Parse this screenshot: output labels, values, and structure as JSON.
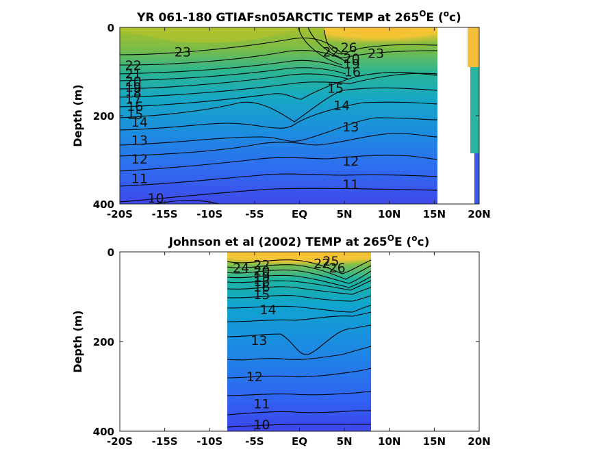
{
  "chart_data": [
    {
      "type": "contour",
      "title": "YR 061-180 GTIAFsn05ARCTIC TEMP at 265",
      "title_sup": "O",
      "title_end": "E (",
      "title_sup2": "o",
      "title_tail": "c)",
      "ylabel": "Depth (m)",
      "xlim": [
        -20,
        20
      ],
      "ylim": [
        400,
        0
      ],
      "x_ticks": [
        -20,
        -15,
        -10,
        -5,
        0,
        5,
        10,
        15,
        20
      ],
      "x_tick_labels": [
        "-20S",
        "-15S",
        "-10S",
        "-5S",
        "EQ",
        "5N",
        "10N",
        "15N",
        "20N"
      ],
      "y_ticks": [
        0,
        200,
        400
      ],
      "y_tick_labels": [
        "0",
        "200",
        "400"
      ],
      "data_extent_x": [
        -20,
        15.5
      ],
      "contour_labels": [
        {
          "text": "23",
          "x": -13,
          "depth": 55
        },
        {
          "text": "22",
          "x": -18.5,
          "depth": 85
        },
        {
          "text": "21",
          "x": -18.5,
          "depth": 105
        },
        {
          "text": "20",
          "x": -18.5,
          "depth": 122
        },
        {
          "text": "19",
          "x": -18.5,
          "depth": 135
        },
        {
          "text": "18",
          "x": -18.5,
          "depth": 148
        },
        {
          "text": "17",
          "x": -18.5,
          "depth": 162
        },
        {
          "text": "16",
          "x": -18.3,
          "depth": 178
        },
        {
          "text": "15",
          "x": -18.3,
          "depth": 196
        },
        {
          "text": "14",
          "x": -17.8,
          "depth": 214
        },
        {
          "text": "13",
          "x": -17.8,
          "depth": 255
        },
        {
          "text": "12",
          "x": -17.8,
          "depth": 298
        },
        {
          "text": "11",
          "x": -17.8,
          "depth": 342
        },
        {
          "text": "10",
          "x": -16,
          "depth": 386
        },
        {
          "text": "15",
          "x": 4,
          "depth": 137
        },
        {
          "text": "14",
          "x": 4.7,
          "depth": 176
        },
        {
          "text": "16",
          "x": 5.9,
          "depth": 100
        },
        {
          "text": "13",
          "x": 5.7,
          "depth": 225
        },
        {
          "text": "12",
          "x": 5.7,
          "depth": 302
        },
        {
          "text": "11",
          "x": 5.7,
          "depth": 355
        },
        {
          "text": "22",
          "x": 3.5,
          "depth": 55
        },
        {
          "text": "26",
          "x": 5.5,
          "depth": 45
        },
        {
          "text": "23",
          "x": 8.5,
          "depth": 58
        },
        {
          "text": "20",
          "x": 5.8,
          "depth": 70
        },
        {
          "text": "19",
          "x": 5.8,
          "depth": 82
        }
      ]
    },
    {
      "type": "contour",
      "title": "Johnson et al (2002) TEMP at 265",
      "title_sup": "O",
      "title_end": "E (",
      "title_sup2": "o",
      "title_tail": "c)",
      "ylabel": "Depth (m)",
      "xlim": [
        -20,
        20
      ],
      "ylim": [
        400,
        0
      ],
      "x_ticks": [
        -20,
        -15,
        -10,
        -5,
        0,
        5,
        10,
        15,
        20
      ],
      "x_tick_labels": [
        "-20S",
        "-15S",
        "-10S",
        "-5S",
        "EQ",
        "5N",
        "10N",
        "15N",
        "20N"
      ],
      "y_ticks": [
        0,
        200,
        400
      ],
      "y_tick_labels": [
        "0",
        "200",
        "400"
      ],
      "data_extent_x": [
        -8,
        8
      ],
      "contour_labels": [
        {
          "text": "24",
          "x": -6.5,
          "depth": 35
        },
        {
          "text": "22",
          "x": -4.2,
          "depth": 28
        },
        {
          "text": "20",
          "x": -4.2,
          "depth": 42
        },
        {
          "text": "19",
          "x": -4.2,
          "depth": 55
        },
        {
          "text": "18",
          "x": -4.2,
          "depth": 66
        },
        {
          "text": "16",
          "x": -4.2,
          "depth": 78
        },
        {
          "text": "15",
          "x": -4.2,
          "depth": 95
        },
        {
          "text": "14",
          "x": -3.5,
          "depth": 128
        },
        {
          "text": "22",
          "x": 2.5,
          "depth": 25
        },
        {
          "text": "25",
          "x": 3.5,
          "depth": 20
        },
        {
          "text": "26",
          "x": 4.2,
          "depth": 35
        },
        {
          "text": "13",
          "x": -4.5,
          "depth": 197
        },
        {
          "text": "12",
          "x": -5,
          "depth": 278
        },
        {
          "text": "11",
          "x": -4.2,
          "depth": 338
        },
        {
          "text": "10",
          "x": -4.2,
          "depth": 385
        }
      ]
    }
  ]
}
